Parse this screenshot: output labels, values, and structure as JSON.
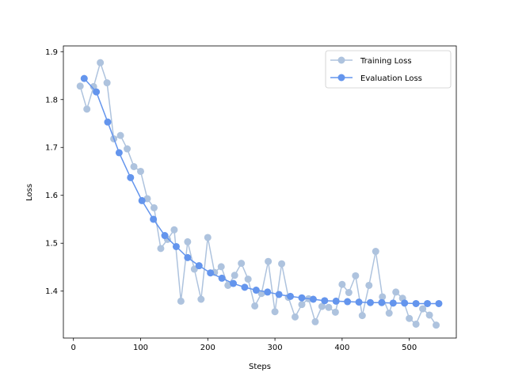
{
  "chart_data": {
    "type": "line",
    "title": "",
    "xlabel": "Steps",
    "ylabel": "Loss",
    "xlim": [
      -15,
      570
    ],
    "ylim": [
      1.302,
      1.912
    ],
    "xticks": [
      0,
      100,
      200,
      300,
      400,
      500
    ],
    "yticks": [
      1.4,
      1.5,
      1.6,
      1.7,
      1.8,
      1.9
    ],
    "xtick_labels": [
      "0",
      "100",
      "200",
      "300",
      "400",
      "500"
    ],
    "ytick_labels": [
      "1.4",
      "1.5",
      "1.6",
      "1.7",
      "1.8",
      "1.9"
    ],
    "grid": false,
    "legend_position": "top-right",
    "series": [
      {
        "name": "Training Loss",
        "color": "#aec3de",
        "marker": "circle",
        "x": [
          10,
          20,
          30,
          40,
          50,
          60,
          70,
          80,
          90,
          100,
          110,
          120,
          130,
          140,
          150,
          160,
          170,
          180,
          190,
          200,
          210,
          220,
          230,
          240,
          250,
          260,
          270,
          280,
          290,
          300,
          310,
          320,
          330,
          340,
          350,
          360,
          370,
          380,
          390,
          400,
          410,
          420,
          430,
          440,
          450,
          460,
          470,
          480,
          490,
          500,
          510,
          520,
          530,
          540
        ],
        "y": [
          1.828,
          1.78,
          1.827,
          1.877,
          1.835,
          1.718,
          1.725,
          1.697,
          1.66,
          1.65,
          1.593,
          1.574,
          1.489,
          1.508,
          1.528,
          1.379,
          1.503,
          1.446,
          1.383,
          1.512,
          1.439,
          1.451,
          1.412,
          1.433,
          1.458,
          1.425,
          1.369,
          1.395,
          1.462,
          1.357,
          1.457,
          1.387,
          1.346,
          1.372,
          1.384,
          1.336,
          1.368,
          1.366,
          1.356,
          1.414,
          1.397,
          1.432,
          1.349,
          1.412,
          1.483,
          1.388,
          1.354,
          1.398,
          1.385,
          1.343,
          1.331,
          1.363,
          1.35,
          1.329
        ]
      },
      {
        "name": "Evaluation Loss",
        "color": "#6495ed",
        "marker": "circle",
        "x": [
          16,
          34,
          51,
          68,
          85,
          102,
          119,
          136,
          153,
          170,
          187,
          204,
          221,
          238,
          255,
          272,
          289,
          306,
          323,
          340,
          357,
          374,
          391,
          408,
          425,
          442,
          459,
          476,
          493,
          510,
          527,
          544
        ],
        "y": [
          1.844,
          1.816,
          1.753,
          1.689,
          1.637,
          1.589,
          1.55,
          1.516,
          1.493,
          1.47,
          1.453,
          1.438,
          1.427,
          1.416,
          1.408,
          1.402,
          1.398,
          1.393,
          1.389,
          1.386,
          1.383,
          1.38,
          1.379,
          1.378,
          1.377,
          1.376,
          1.376,
          1.375,
          1.375,
          1.374,
          1.374,
          1.374
        ]
      }
    ]
  }
}
